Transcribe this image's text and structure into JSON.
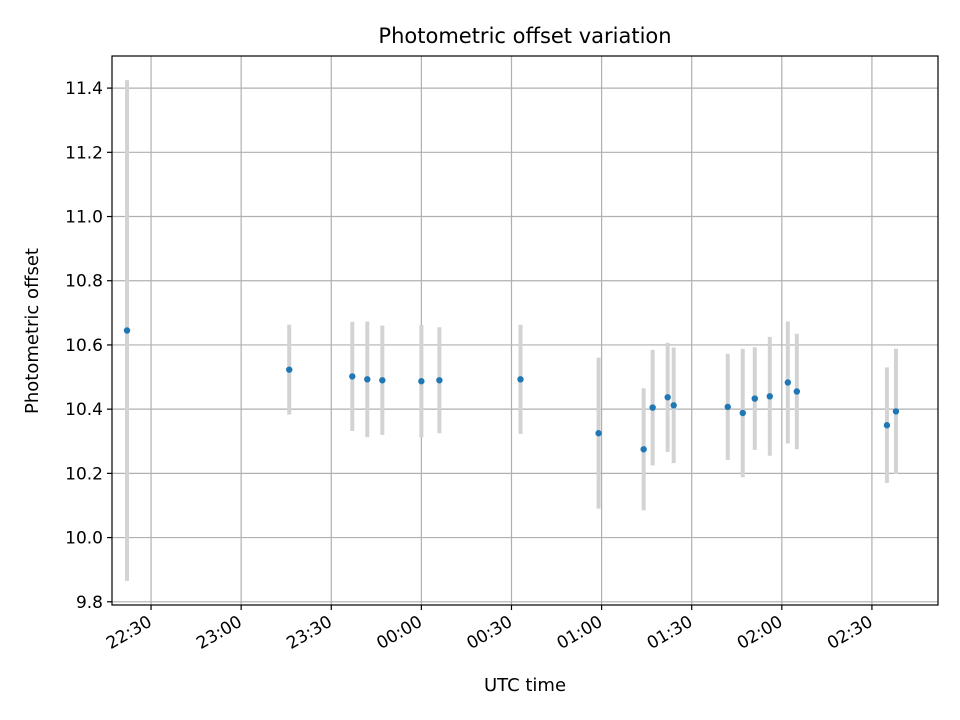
{
  "chart_data": {
    "type": "scatter",
    "title": "Photometric offset variation",
    "xlabel": "UTC time",
    "ylabel": "Photometric offset",
    "xlim": [
      "22:17",
      "02:52"
    ],
    "ylim": [
      9.79,
      11.5
    ],
    "x_ticks": [
      "22:30",
      "23:00",
      "23:30",
      "00:00",
      "00:30",
      "01:00",
      "01:30",
      "02:00",
      "02:30"
    ],
    "y_ticks": [
      9.8,
      10.0,
      10.2,
      10.4,
      10.6,
      10.8,
      11.0,
      11.2,
      11.4
    ],
    "grid": true,
    "series": [
      {
        "marker_color": "#1f77b4",
        "errorbar_color": "#d3d3d3",
        "points": [
          {
            "time": "22:22",
            "value": 10.645,
            "error": 0.78
          },
          {
            "time": "23:16",
            "value": 10.523,
            "error": 0.14
          },
          {
            "time": "23:37",
            "value": 10.502,
            "error": 0.17
          },
          {
            "time": "23:42",
            "value": 10.493,
            "error": 0.18
          },
          {
            "time": "23:47",
            "value": 10.49,
            "error": 0.17
          },
          {
            "time": "00:00",
            "value": 10.487,
            "error": 0.175
          },
          {
            "time": "00:06",
            "value": 10.49,
            "error": 0.165
          },
          {
            "time": "00:33",
            "value": 10.493,
            "error": 0.17
          },
          {
            "time": "00:59",
            "value": 10.325,
            "error": 0.235
          },
          {
            "time": "01:14",
            "value": 10.275,
            "error": 0.19
          },
          {
            "time": "01:17",
            "value": 10.405,
            "error": 0.18
          },
          {
            "time": "01:22",
            "value": 10.437,
            "error": 0.17
          },
          {
            "time": "01:24",
            "value": 10.412,
            "error": 0.18
          },
          {
            "time": "01:42",
            "value": 10.407,
            "error": 0.165
          },
          {
            "time": "01:47",
            "value": 10.388,
            "error": 0.2
          },
          {
            "time": "01:51",
            "value": 10.433,
            "error": 0.16
          },
          {
            "time": "01:56",
            "value": 10.44,
            "error": 0.185
          },
          {
            "time": "02:02",
            "value": 10.483,
            "error": 0.19
          },
          {
            "time": "02:05",
            "value": 10.455,
            "error": 0.18
          },
          {
            "time": "02:35",
            "value": 10.35,
            "error": 0.18
          },
          {
            "time": "02:38",
            "value": 10.393,
            "error": 0.195
          }
        ]
      }
    ]
  }
}
